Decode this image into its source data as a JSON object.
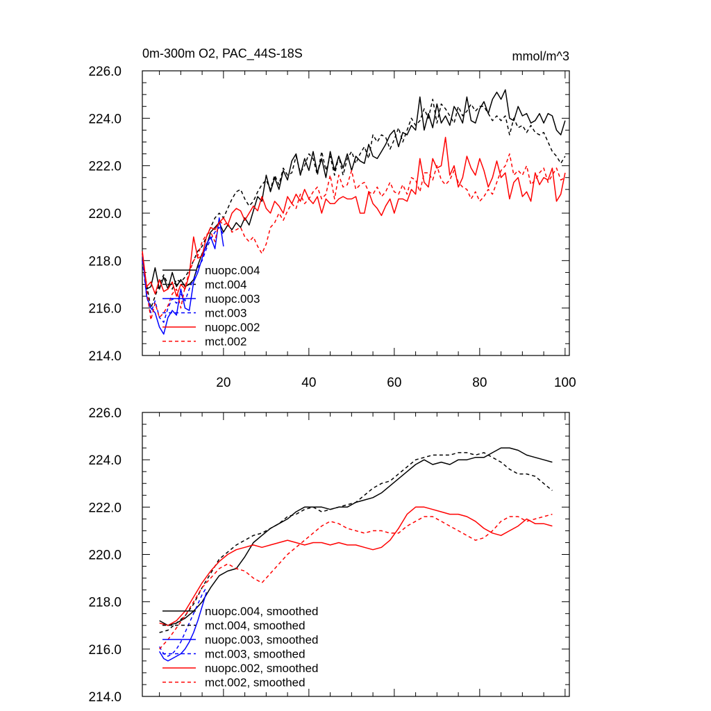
{
  "chart_data": [
    {
      "type": "line",
      "title": "0m-300m O2, PAC_44S-18S",
      "units": "mmol/m^3",
      "xlabel": "",
      "ylabel": "",
      "xlim": [
        1,
        101
      ],
      "ylim": [
        214,
        226
      ],
      "x_ticks": [
        20,
        40,
        60,
        80,
        100
      ],
      "y_ticks": [
        214.0,
        216.0,
        218.0,
        220.0,
        222.0,
        224.0,
        226.0
      ],
      "y_tick_labels": [
        "214.0",
        "216.0",
        "218.0",
        "220.0",
        "222.0",
        "224.0",
        "226.0"
      ],
      "x_tick_labels": [
        "20",
        "40",
        "60",
        "80",
        "100"
      ],
      "legend_position": "lower-left",
      "series": [
        {
          "name": "nuopc.004",
          "color": "#000000",
          "dash": "solid",
          "x_start": 1,
          "values": [
            218.3,
            216.8,
            216.9,
            217.7,
            216.8,
            217.3,
            216.8,
            217.5,
            216.9,
            217.2,
            216.9,
            217.0,
            217.2,
            217.8,
            218.3,
            218.6,
            219.2,
            219.4,
            219.6,
            219.2,
            219.5,
            219.3,
            219.6,
            219.4,
            219.8,
            219.5,
            220.1,
            220.7,
            220.5,
            221.6,
            220.9,
            221.5,
            221.0,
            221.8,
            221.4,
            222.2,
            222.5,
            221.6,
            222.3,
            221.8,
            222.6,
            221.7,
            222.3,
            221.5,
            222.6,
            221.8,
            222.4,
            221.9,
            222.5,
            221.8,
            222.4,
            222.2,
            222.1,
            222.9,
            222.4,
            222.3,
            222.6,
            222.9,
            223.3,
            223.5,
            222.8,
            223.4,
            223.3,
            223.7,
            223.5,
            224.9,
            223.5,
            224.2,
            223.6,
            224.6,
            223.8,
            224.1,
            223.7,
            224.5,
            224.2,
            223.8,
            224.9,
            223.9,
            223.8,
            224.4,
            224.7,
            224.2,
            224.8,
            225.1,
            224.8,
            225.2,
            224.0,
            223.9,
            224.5,
            224.1,
            224.2,
            223.8,
            223.9,
            224.2,
            223.8,
            224.2,
            224.1,
            223.5,
            223.3,
            223.9
          ]
        },
        {
          "name": "mct.004",
          "color": "#000000",
          "dash": "dashed",
          "x_start": 1,
          "values": [
            218.0,
            217.0,
            216.0,
            216.5,
            217.0,
            217.4,
            217.0,
            216.8,
            217.2,
            217.1,
            217.3,
            217.6,
            218.0,
            218.4,
            218.6,
            219.0,
            219.4,
            219.8,
            220.0,
            219.8,
            220.2,
            220.6,
            220.9,
            221.0,
            220.6,
            220.3,
            220.5,
            220.9,
            221.2,
            221.4,
            221.0,
            221.6,
            221.2,
            221.9,
            221.6,
            221.7,
            222.4,
            221.7,
            222.0,
            222.5,
            222.3,
            221.6,
            222.6,
            221.8,
            222.4,
            221.6,
            222.4,
            221.6,
            222.3,
            222.6,
            222.1,
            222.5,
            222.8,
            222.3,
            223.3,
            223.0,
            223.3,
            223.2,
            222.7,
            223.1,
            223.6,
            223.0,
            223.5,
            224.0,
            223.7,
            223.9,
            224.4,
            224.0,
            224.8,
            223.8,
            224.6,
            224.4,
            224.1,
            223.8,
            224.5,
            224.1,
            224.3,
            224.6,
            224.3,
            224.5,
            224.5,
            224.2,
            223.9,
            224.1,
            223.9,
            224.1,
            223.3,
            224.0,
            223.6,
            223.7,
            223.4,
            223.7,
            223.4,
            223.3,
            223.4,
            223.0,
            222.6,
            222.4,
            222.1,
            222.4
          ]
        },
        {
          "name": "nuopc.003",
          "color": "#0000ff",
          "dash": "solid",
          "x_start": 1,
          "values": [
            218.3,
            216.5,
            216.0,
            215.8,
            215.2,
            214.9,
            215.6,
            215.9,
            215.7,
            216.8,
            216.0,
            215.9,
            217.1,
            217.5,
            218.1,
            218.7,
            219.0,
            218.5,
            219.8,
            218.6
          ]
        },
        {
          "name": "mct.003",
          "color": "#0000ff",
          "dash": "dashed",
          "x_start": 1,
          "values": [
            218.0,
            216.5,
            215.8,
            216.3,
            215.6,
            215.4,
            216.0,
            216.4,
            216.2,
            216.6,
            216.3,
            216.8,
            217.2,
            217.7,
            218.0,
            218.5,
            218.9,
            219.2,
            219.4,
            219.1
          ]
        },
        {
          "name": "nuopc.002",
          "color": "#ff0000",
          "dash": "solid",
          "x_start": 1,
          "values": [
            218.4,
            216.9,
            217.1,
            216.6,
            217.2,
            216.7,
            216.8,
            217.1,
            216.5,
            217.0,
            216.8,
            217.4,
            219.0,
            218.1,
            218.2,
            219.0,
            219.4,
            219.3,
            219.6,
            219.8,
            219.5,
            220.0,
            220.2,
            220.1,
            219.7,
            220.0,
            220.3,
            220.1,
            220.7,
            220.2,
            220.0,
            220.5,
            220.3,
            220.0,
            220.7,
            220.4,
            220.8,
            220.5,
            221.0,
            220.6,
            220.4,
            220.7,
            220.0,
            220.6,
            220.4,
            220.4,
            220.6,
            220.7,
            220.6,
            220.6,
            220.7,
            220.0,
            220.0,
            220.9,
            220.4,
            220.2,
            219.9,
            220.3,
            220.6,
            220.0,
            220.6,
            220.6,
            220.5,
            221.0,
            220.8,
            222.3,
            221.3,
            221.1,
            222.3,
            221.9,
            222.0,
            223.2,
            221.6,
            222.0,
            221.1,
            221.5,
            222.4,
            221.9,
            221.6,
            222.3,
            221.8,
            221.1,
            221.5,
            222.2,
            221.5,
            221.7,
            220.6,
            221.3,
            221.5,
            220.7,
            220.9,
            220.5,
            221.7,
            221.2,
            221.5,
            221.4,
            221.9,
            220.5,
            220.8,
            221.7
          ]
        },
        {
          "name": "mct.002",
          "color": "#ff0000",
          "dash": "dashed",
          "x_start": 1,
          "values": [
            218.3,
            216.8,
            215.5,
            216.2,
            215.6,
            215.8,
            216.1,
            216.6,
            216.8,
            216.0,
            216.9,
            217.5,
            218.0,
            218.2,
            218.8,
            219.1,
            219.2,
            218.8,
            219.7,
            219.5,
            219.6,
            219.2,
            219.3,
            219.4,
            219.0,
            218.8,
            219.0,
            218.6,
            218.3,
            218.7,
            219.4,
            219.6,
            220.0,
            219.7,
            220.1,
            220.4,
            220.2,
            220.8,
            220.4,
            220.6,
            220.9,
            221.1,
            220.6,
            220.8,
            221.6,
            220.6,
            221.6,
            221.1,
            221.2,
            221.8,
            221.0,
            221.2,
            221.3,
            220.9,
            220.8,
            221.1,
            220.7,
            220.9,
            221.3,
            220.9,
            220.8,
            221.2,
            220.8,
            221.5,
            221.4,
            220.9,
            221.7,
            221.7,
            221.4,
            222.0,
            221.4,
            221.2,
            221.4,
            221.8,
            221.3,
            221.1,
            221.0,
            220.6,
            220.9,
            220.5,
            220.7,
            221.0,
            220.8,
            221.3,
            221.8,
            222.0,
            222.5,
            221.6,
            221.8,
            221.6,
            222.0,
            221.2,
            221.4,
            221.7,
            221.9,
            221.3,
            221.6,
            221.9,
            221.4,
            221.5
          ]
        }
      ],
      "legend": [
        "nuopc.004",
        "mct.004",
        "nuopc.003",
        "mct.003",
        "nuopc.002",
        "mct.002"
      ]
    },
    {
      "type": "line",
      "title": "",
      "xlabel": "",
      "ylabel": "",
      "xlim": [
        1,
        101
      ],
      "ylim": [
        214,
        226
      ],
      "x_ticks": [
        20,
        40,
        60,
        80,
        100
      ],
      "y_ticks": [
        214.0,
        216.0,
        218.0,
        220.0,
        222.0,
        224.0,
        226.0
      ],
      "y_tick_labels": [
        "214.0",
        "216.0",
        "218.0",
        "220.0",
        "222.0",
        "224.0",
        "226.0"
      ],
      "legend_position": "lower-left",
      "series": [
        {
          "name": "nuopc.004, smoothed",
          "color": "#000000",
          "dash": "solid",
          "x": [
            5,
            7,
            9,
            11,
            13,
            15,
            17,
            19,
            21,
            23,
            25,
            27,
            29,
            31,
            33,
            35,
            37,
            39,
            41,
            43,
            45,
            47,
            49,
            51,
            53,
            55,
            57,
            59,
            61,
            63,
            65,
            67,
            69,
            71,
            73,
            75,
            77,
            79,
            81,
            83,
            85,
            87,
            89,
            91,
            93,
            95,
            97
          ],
          "values": [
            217.2,
            217.0,
            217.1,
            217.3,
            217.6,
            218.0,
            218.6,
            219.1,
            219.3,
            219.4,
            219.9,
            220.5,
            220.8,
            221.1,
            221.3,
            221.5,
            221.8,
            222.0,
            222.0,
            222.0,
            221.9,
            222.0,
            222.0,
            222.2,
            222.3,
            222.4,
            222.6,
            222.9,
            223.2,
            223.5,
            223.8,
            224.0,
            223.8,
            223.9,
            223.8,
            224.0,
            224.0,
            224.1,
            224.1,
            224.3,
            224.5,
            224.5,
            224.4,
            224.2,
            224.1,
            224.0,
            223.9
          ]
        },
        {
          "name": "mct.004, smoothed",
          "color": "#000000",
          "dash": "dashed",
          "x": [
            5,
            7,
            9,
            11,
            13,
            15,
            17,
            19,
            21,
            23,
            25,
            27,
            29,
            31,
            33,
            35,
            37,
            39,
            41,
            43,
            45,
            47,
            49,
            51,
            53,
            55,
            57,
            59,
            61,
            63,
            65,
            67,
            69,
            71,
            73,
            75,
            77,
            79,
            81,
            83,
            85,
            87,
            89,
            91,
            93,
            95,
            97
          ],
          "values": [
            216.7,
            216.8,
            217.1,
            217.4,
            217.9,
            218.6,
            219.2,
            219.8,
            220.1,
            220.4,
            220.6,
            220.8,
            220.9,
            221.1,
            221.3,
            221.6,
            221.7,
            221.9,
            222.0,
            221.8,
            221.9,
            222.0,
            222.1,
            222.2,
            222.5,
            222.8,
            223.0,
            223.1,
            223.4,
            223.7,
            224.0,
            224.1,
            224.2,
            224.2,
            224.2,
            224.3,
            224.3,
            224.2,
            224.3,
            224.1,
            223.9,
            223.6,
            223.4,
            223.4,
            223.3,
            223.0,
            222.7
          ]
        },
        {
          "name": "nuopc.003, smoothed",
          "color": "#0000ff",
          "dash": "solid",
          "x": [
            5,
            6,
            7,
            8,
            9,
            10,
            11,
            12,
            13,
            14,
            15,
            16
          ],
          "values": [
            215.9,
            215.6,
            215.5,
            215.6,
            215.7,
            215.8,
            216.0,
            216.3,
            216.7,
            217.2,
            217.8,
            218.4
          ]
        },
        {
          "name": "mct.003, smoothed",
          "color": "#0000ff",
          "dash": "dashed",
          "x": [
            5,
            6,
            7,
            8,
            9,
            10,
            11,
            12,
            13,
            14,
            15,
            16
          ],
          "values": [
            216.1,
            215.8,
            215.7,
            215.8,
            216.0,
            216.3,
            216.7,
            217.1,
            217.5,
            217.9,
            218.3,
            218.6
          ]
        },
        {
          "name": "nuopc.002, smoothed",
          "color": "#ff0000",
          "dash": "solid",
          "x": [
            5,
            7,
            9,
            11,
            13,
            15,
            17,
            19,
            21,
            23,
            25,
            27,
            29,
            31,
            33,
            35,
            37,
            39,
            41,
            43,
            45,
            47,
            49,
            51,
            53,
            55,
            57,
            59,
            61,
            63,
            65,
            67,
            69,
            71,
            73,
            75,
            77,
            79,
            81,
            83,
            85,
            87,
            89,
            91,
            93,
            95,
            97
          ],
          "values": [
            217.1,
            217.0,
            217.2,
            217.6,
            218.2,
            218.8,
            219.3,
            219.7,
            220.0,
            220.2,
            220.3,
            220.4,
            220.3,
            220.4,
            220.5,
            220.6,
            220.5,
            220.4,
            220.5,
            220.5,
            220.4,
            220.5,
            220.4,
            220.4,
            220.3,
            220.2,
            220.3,
            220.6,
            221.1,
            221.7,
            222.0,
            222.0,
            221.9,
            221.8,
            221.7,
            221.7,
            221.6,
            221.4,
            221.1,
            220.9,
            220.8,
            221.0,
            221.2,
            221.5,
            221.3,
            221.3,
            221.2
          ]
        },
        {
          "name": "mct.002, smoothed",
          "color": "#ff0000",
          "dash": "dashed",
          "x": [
            5,
            7,
            9,
            11,
            13,
            15,
            17,
            19,
            21,
            23,
            25,
            27,
            29,
            31,
            33,
            35,
            37,
            39,
            41,
            43,
            45,
            47,
            49,
            51,
            53,
            55,
            57,
            59,
            61,
            63,
            65,
            67,
            69,
            71,
            73,
            75,
            77,
            79,
            81,
            83,
            85,
            87,
            89,
            91,
            93,
            95,
            97
          ],
          "values": [
            216.0,
            216.4,
            216.9,
            217.4,
            218.0,
            218.6,
            219.0,
            219.4,
            219.6,
            219.4,
            219.3,
            219.0,
            218.8,
            219.2,
            219.6,
            220.0,
            220.3,
            220.6,
            220.9,
            221.2,
            221.4,
            221.3,
            221.1,
            221.0,
            220.9,
            221.0,
            221.0,
            220.9,
            220.9,
            221.2,
            221.4,
            221.6,
            221.6,
            221.4,
            221.2,
            221.0,
            220.8,
            220.6,
            220.7,
            221.0,
            221.4,
            221.6,
            221.6,
            221.4,
            221.5,
            221.6,
            221.7
          ]
        }
      ],
      "legend": [
        "nuopc.004, smoothed",
        "mct.004, smoothed",
        "nuopc.003, smoothed",
        "mct.003, smoothed",
        "nuopc.002, smoothed",
        "mct.002, smoothed"
      ]
    }
  ]
}
